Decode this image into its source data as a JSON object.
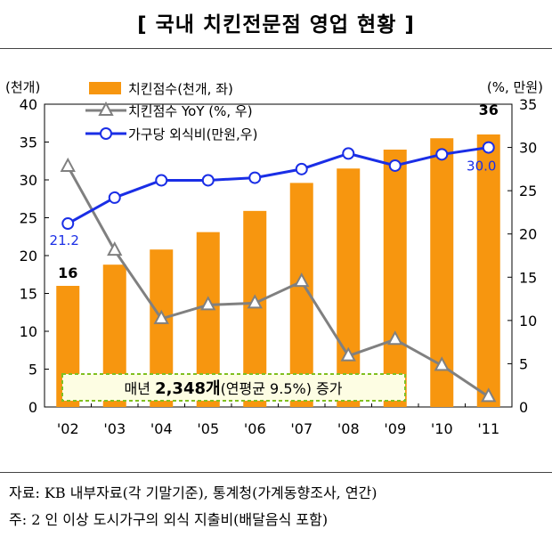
{
  "title": "[ 국내 치킨전문점 영업 현황 ]",
  "chart_data": {
    "type": "bar",
    "categories": [
      "'02",
      "'03",
      "'04",
      "'05",
      "'06",
      "'07",
      "'08",
      "'09",
      "'10",
      "'11"
    ],
    "left_axis": {
      "unit_label": "(천개)",
      "ylim": [
        0,
        40
      ],
      "ticks": [
        0,
        5,
        10,
        15,
        20,
        25,
        30,
        35,
        40
      ]
    },
    "right_axis": {
      "unit_label": "(%, 만원)",
      "ylim": [
        0,
        35
      ],
      "ticks": [
        0,
        5,
        10,
        15,
        20,
        25,
        30,
        35
      ]
    },
    "series": [
      {
        "name": "치킨점수(천개, 좌)",
        "type": "bar",
        "axis": "left",
        "color": "#f7960f",
        "values": [
          16,
          18.8,
          20.8,
          23.1,
          25.9,
          29.6,
          31.5,
          34,
          35.5,
          36
        ]
      },
      {
        "name": "치킨점수 YoY (%, 우)",
        "type": "line",
        "axis": "right",
        "color": "#808080",
        "marker": "triangle",
        "values": [
          27.8,
          18.1,
          10.2,
          11.8,
          12.0,
          14.5,
          5.9,
          7.8,
          4.8,
          1.2
        ]
      },
      {
        "name": "가구당 외식비(만원,우)",
        "type": "line",
        "axis": "right",
        "color": "#1a2ee6",
        "marker": "circle",
        "values": [
          21.2,
          24.2,
          26.2,
          26.2,
          26.5,
          27.5,
          29.3,
          27.9,
          29.2,
          30.0
        ]
      }
    ],
    "data_labels": {
      "bar_first": "16",
      "bar_last": "36",
      "line_first": "21.2",
      "line_last": "30.0"
    },
    "annotation": {
      "prefix": "매년 ",
      "value": "2,348개",
      "suffix": "(연평균 9.5%) 증가"
    },
    "grid": false,
    "legend": "top-left"
  },
  "footer": {
    "source": "자료: KB 내부자료(각 기말기준), 통계청(가계동향조사, 연간)",
    "note": "주: 2 인 이상 도시가구의 외식 지출비(배달음식 포함)"
  }
}
